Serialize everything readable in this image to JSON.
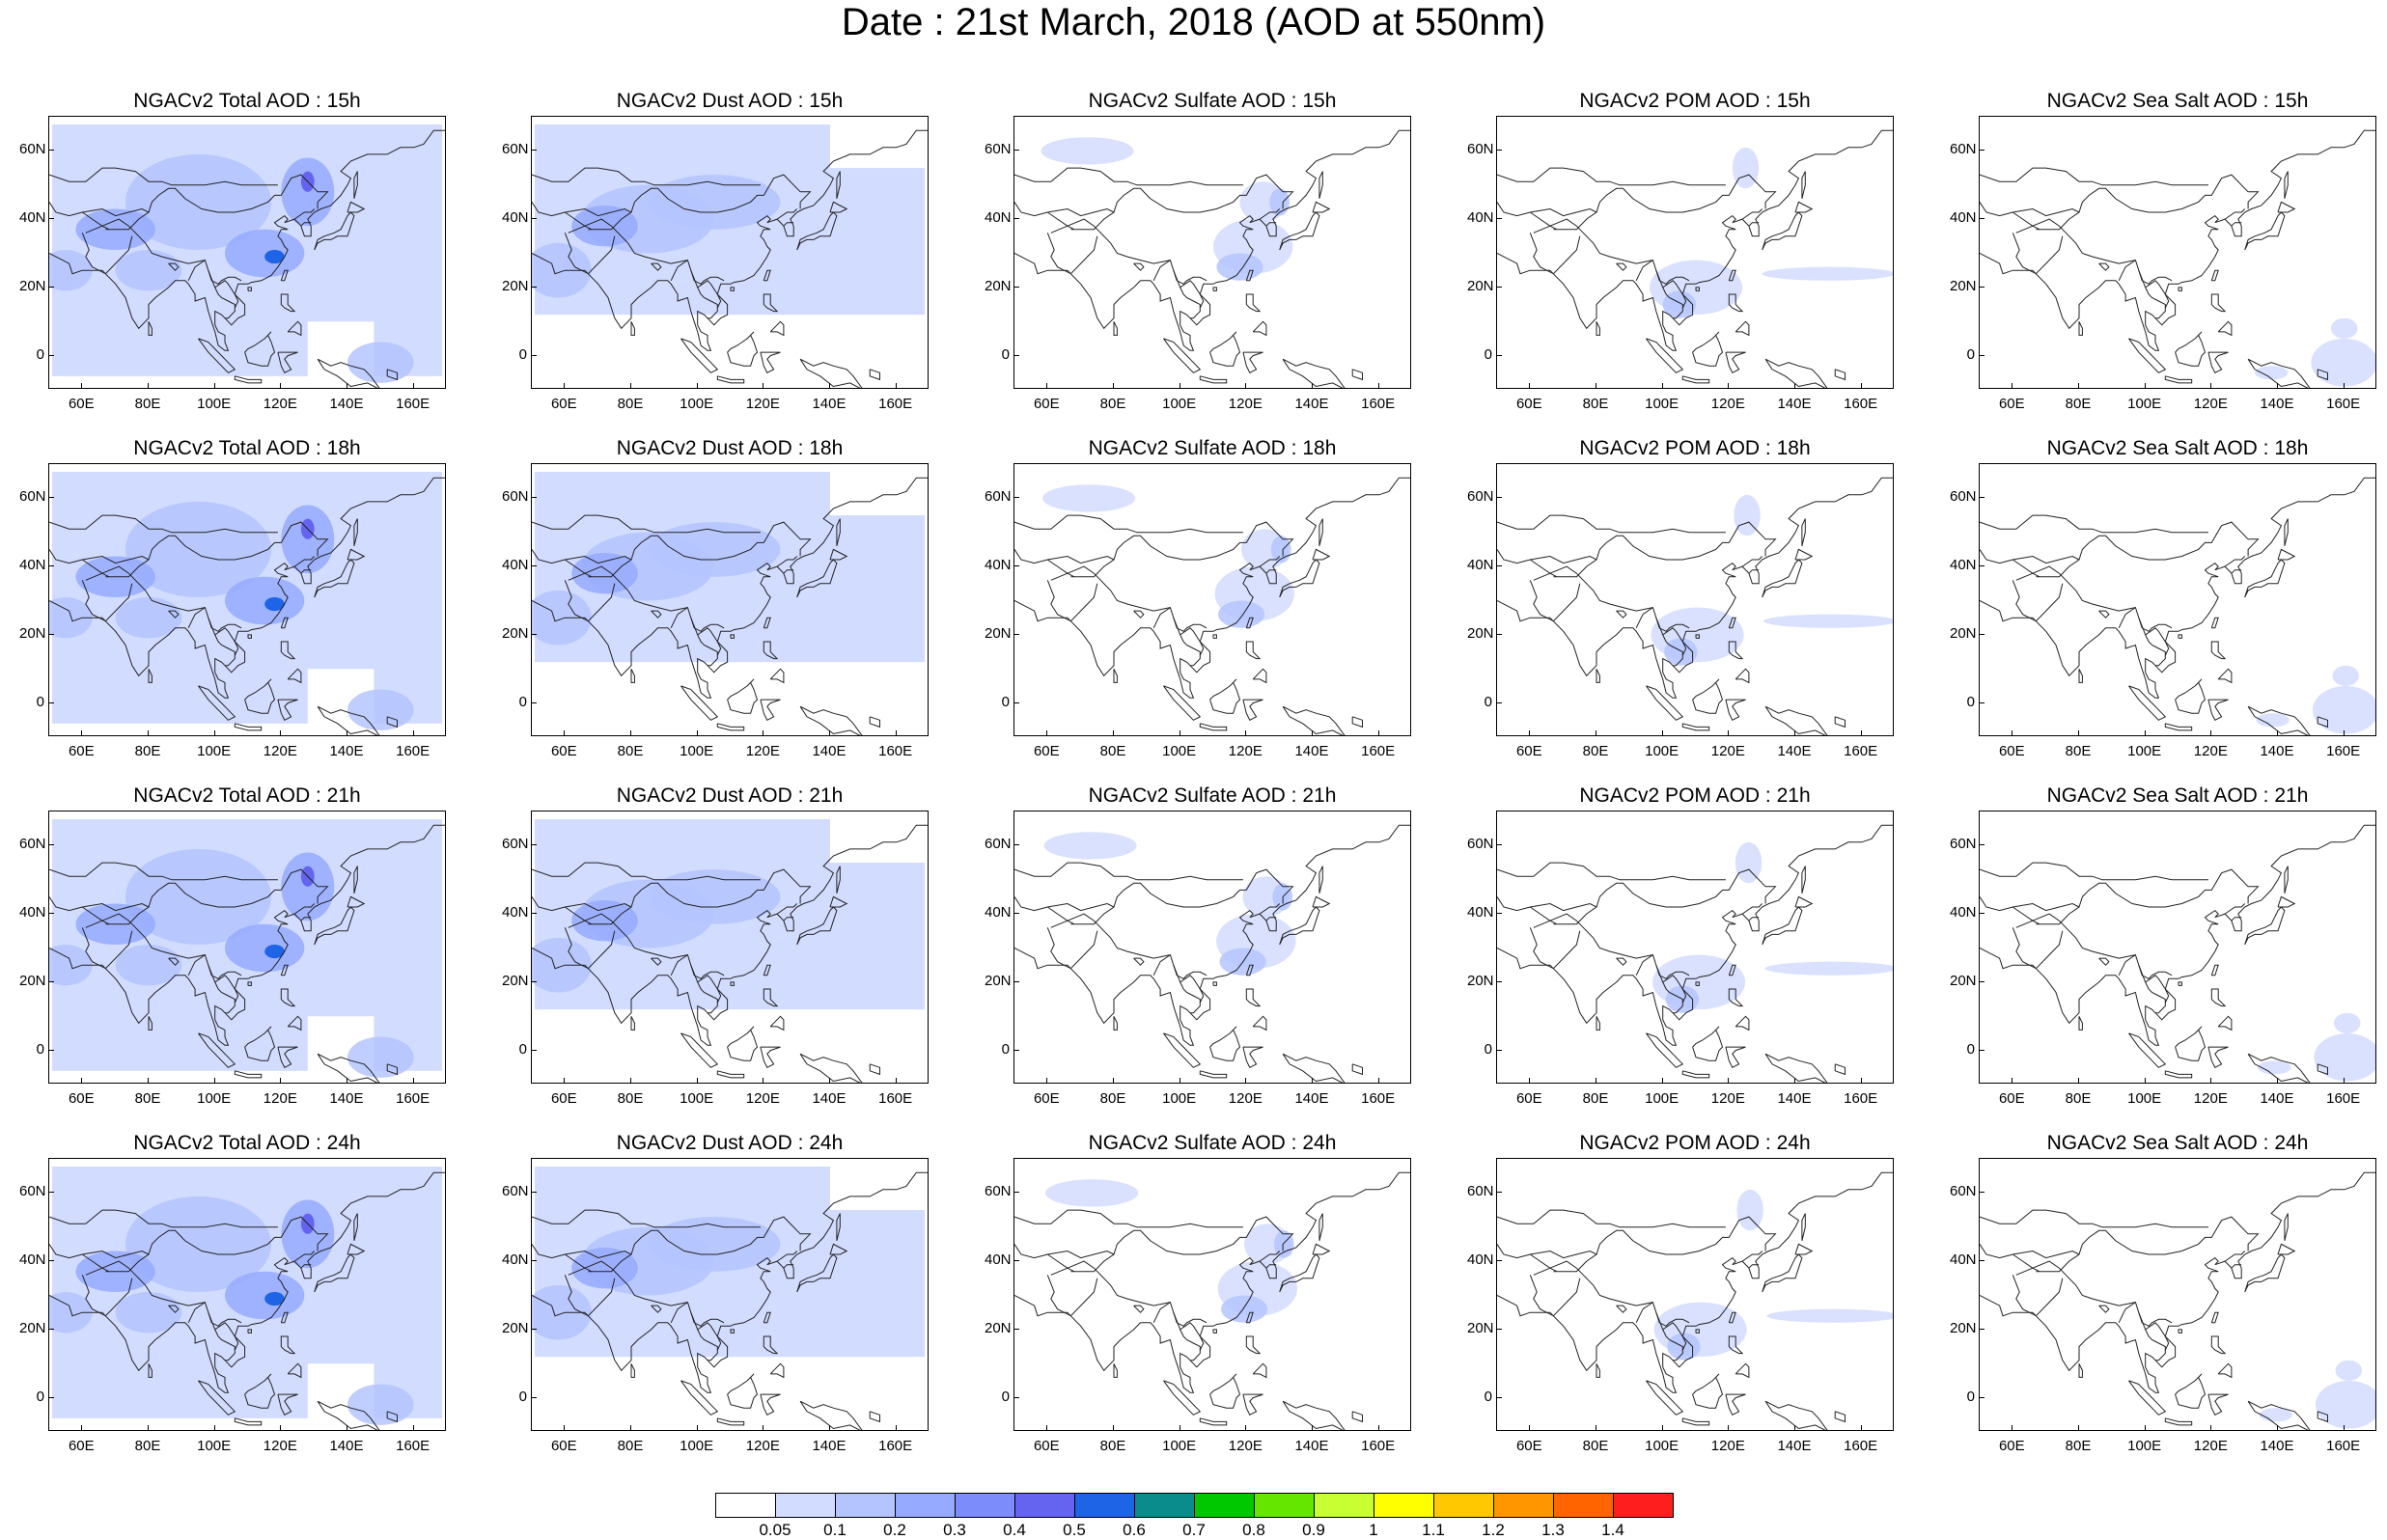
{
  "title": "Date : 21st March, 2018 (AOD at 550nm)",
  "axes": {
    "lat_ticks": [
      "60N",
      "40N",
      "20N",
      "0"
    ],
    "lon_ticks": [
      "60E",
      "80E",
      "100E",
      "120E",
      "140E",
      "160E"
    ],
    "lat_range": [
      -10,
      70
    ],
    "lon_range": [
      50,
      170
    ]
  },
  "panels": [
    {
      "title": "NGACv2 Total AOD : 15h",
      "species": "total",
      "hour": "15h"
    },
    {
      "title": "NGACv2 Dust AOD : 15h",
      "species": "dust",
      "hour": "15h"
    },
    {
      "title": "NGACv2 Sulfate AOD : 15h",
      "species": "sulfate",
      "hour": "15h"
    },
    {
      "title": "NGACv2 POM AOD : 15h",
      "species": "pom",
      "hour": "15h"
    },
    {
      "title": "NGACv2 Sea Salt AOD : 15h",
      "species": "seasalt",
      "hour": "15h"
    },
    {
      "title": "NGACv2 Total AOD : 18h",
      "species": "total",
      "hour": "18h"
    },
    {
      "title": "NGACv2 Dust AOD : 18h",
      "species": "dust",
      "hour": "18h"
    },
    {
      "title": "NGACv2 Sulfate AOD : 18h",
      "species": "sulfate",
      "hour": "18h"
    },
    {
      "title": "NGACv2 POM AOD : 18h",
      "species": "pom",
      "hour": "18h"
    },
    {
      "title": "NGACv2 Sea Salt AOD : 18h",
      "species": "seasalt",
      "hour": "18h"
    },
    {
      "title": "NGACv2 Total AOD : 21h",
      "species": "total",
      "hour": "21h"
    },
    {
      "title": "NGACv2 Dust AOD : 21h",
      "species": "dust",
      "hour": "21h"
    },
    {
      "title": "NGACv2 Sulfate AOD : 21h",
      "species": "sulfate",
      "hour": "21h"
    },
    {
      "title": "NGACv2 POM AOD : 21h",
      "species": "pom",
      "hour": "21h"
    },
    {
      "title": "NGACv2 Sea Salt AOD : 21h",
      "species": "seasalt",
      "hour": "21h"
    },
    {
      "title": "NGACv2 Total AOD : 24h",
      "species": "total",
      "hour": "24h"
    },
    {
      "title": "NGACv2 Dust AOD : 24h",
      "species": "dust",
      "hour": "24h"
    },
    {
      "title": "NGACv2 Sulfate AOD : 24h",
      "species": "sulfate",
      "hour": "24h"
    },
    {
      "title": "NGACv2 POM AOD : 24h",
      "species": "pom",
      "hour": "24h"
    },
    {
      "title": "NGACv2 Sea Salt  AOD : 24h",
      "species": "seasalt",
      "hour": "24h"
    }
  ],
  "colorbar": {
    "levels": [
      "0.05",
      "0.1",
      "0.2",
      "0.3",
      "0.4",
      "0.5",
      "0.6",
      "0.7",
      "0.8",
      "0.9",
      "1",
      "1.1",
      "1.2",
      "1.3",
      "1.4"
    ],
    "colors": [
      "#ffffff",
      "#d2dcff",
      "#b4c4ff",
      "#96aaff",
      "#7c8cfa",
      "#6464f0",
      "#1e64e6",
      "#0a8c8c",
      "#00c800",
      "#64e600",
      "#c8ff32",
      "#ffff00",
      "#ffc800",
      "#ff9600",
      "#ff6400",
      "#ff1e1e"
    ]
  }
}
